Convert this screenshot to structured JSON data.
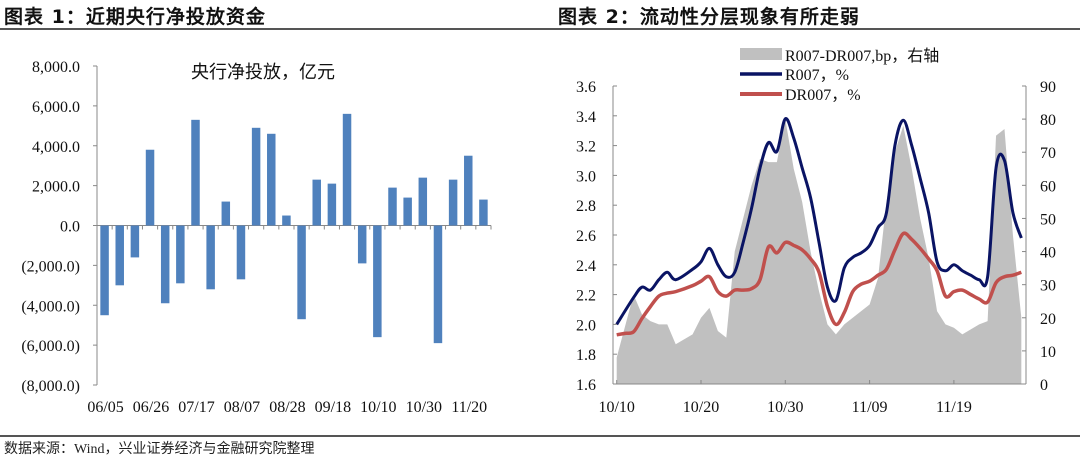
{
  "headers": {
    "left": "图表 1：近期央行净投放资金",
    "right": "图表 2：流动性分层现象有所走弱"
  },
  "footer": "数据来源：Wind，兴业证券经济与金融研究院整理",
  "chart_data": [
    {
      "type": "bar",
      "title": "央行净投放，亿元",
      "xlabel": "",
      "ylabel": "",
      "ylim": [
        -8000,
        8000
      ],
      "yticks": [
        "(8,000.0)",
        "(6,000.0)",
        "(4,000.0)",
        "(2,000.0)",
        "0.0",
        "2,000.0",
        "4,000.0",
        "6,000.0",
        "8,000.0"
      ],
      "ytick_values": [
        -8000,
        -6000,
        -4000,
        -2000,
        0,
        2000,
        4000,
        6000,
        8000
      ],
      "categories": [
        "06/05",
        "",
        "",
        "06/26",
        "",
        "",
        "07/17",
        "",
        "",
        "08/07",
        "",
        "",
        "08/28",
        "",
        "",
        "09/18",
        "",
        "",
        "10/10",
        "",
        "",
        "10/30",
        "",
        "",
        "11/20",
        ""
      ],
      "values": [
        -4500,
        -3000,
        -1600,
        3800,
        -3900,
        -2900,
        5300,
        -3200,
        1200,
        -2700,
        4900,
        4600,
        500,
        -4700,
        2300,
        2100,
        5600,
        -1900,
        -5600,
        1900,
        1400,
        2400,
        -5900,
        2300,
        3500,
        1300
      ],
      "color": "#4f81bd",
      "grid": false
    },
    {
      "type": "line",
      "title": "",
      "x_start": "10/10",
      "xticks": [
        "10/10",
        "10/20",
        "10/30",
        "11/09",
        "11/19"
      ],
      "xtick_days": [
        0,
        10,
        20,
        30,
        40
      ],
      "ylim_left": [
        1.6,
        3.6
      ],
      "yticks_left": [
        "1.6",
        "1.8",
        "2.0",
        "2.2",
        "2.4",
        "2.6",
        "2.8",
        "3.0",
        "3.2",
        "3.4",
        "3.6"
      ],
      "ylim_right": [
        0,
        90
      ],
      "yticks_right": [
        "0",
        "10",
        "20",
        "30",
        "40",
        "50",
        "60",
        "70",
        "80",
        "90"
      ],
      "legend_position": "top-center",
      "grid": false,
      "series": [
        {
          "name": "R007-DR007,bp，右轴",
          "kind": "area",
          "axis": "right",
          "color": "#c0c0c0",
          "days": [
            0,
            2,
            3,
            4,
            5,
            6,
            7,
            9,
            10,
            11,
            12,
            13,
            14,
            16,
            17,
            18,
            19,
            20,
            21,
            22,
            23,
            24,
            25,
            26,
            27,
            29,
            30,
            31,
            32,
            33,
            34,
            35,
            36,
            37,
            38,
            39,
            40,
            41,
            43,
            44,
            45,
            46,
            47,
            48
          ],
          "values": [
            8,
            27,
            21,
            19,
            18,
            18,
            12,
            15,
            20,
            23,
            16,
            14,
            40,
            60,
            68,
            67,
            67,
            80,
            65,
            55,
            40,
            28,
            18,
            15,
            18,
            22,
            24,
            32,
            55,
            70,
            78,
            65,
            50,
            38,
            22,
            18,
            17,
            15,
            18,
            19,
            75,
            77,
            45,
            20
          ]
        },
        {
          "name": "R007，%",
          "kind": "line",
          "axis": "left",
          "color": "#0a1464",
          "days": [
            0,
            2,
            3,
            4,
            5,
            6,
            7,
            9,
            10,
            11,
            12,
            13,
            14,
            15,
            16,
            17,
            18,
            19,
            20,
            21,
            22,
            23,
            24,
            25,
            26,
            27,
            28,
            29,
            30,
            31,
            32,
            33,
            34,
            35,
            36,
            37,
            38,
            39,
            40,
            41,
            42,
            43,
            44,
            45,
            46,
            47,
            48
          ],
          "values": [
            2.0,
            2.18,
            2.25,
            2.23,
            2.3,
            2.35,
            2.3,
            2.37,
            2.42,
            2.51,
            2.4,
            2.32,
            2.35,
            2.55,
            2.78,
            3.05,
            3.22,
            3.16,
            3.38,
            3.25,
            3.05,
            2.85,
            2.55,
            2.25,
            2.16,
            2.38,
            2.45,
            2.48,
            2.53,
            2.65,
            2.75,
            3.2,
            3.37,
            3.2,
            2.98,
            2.75,
            2.42,
            2.36,
            2.4,
            2.36,
            2.33,
            2.3,
            2.32,
            3.05,
            3.1,
            2.75,
            2.58
          ]
        },
        {
          "name": "DR007，%",
          "kind": "line",
          "axis": "left",
          "color": "#c0504d",
          "days": [
            0,
            1,
            2,
            3,
            4,
            5,
            6,
            7,
            9,
            10,
            11,
            12,
            13,
            14,
            15,
            16,
            17,
            18,
            19,
            20,
            21,
            22,
            23,
            24,
            25,
            26,
            27,
            28,
            29,
            30,
            31,
            32,
            33,
            34,
            35,
            36,
            37,
            38,
            39,
            40,
            41,
            42,
            43,
            44,
            45,
            46,
            47,
            48
          ],
          "values": [
            1.93,
            1.94,
            1.95,
            2.04,
            2.12,
            2.19,
            2.21,
            2.22,
            2.26,
            2.29,
            2.32,
            2.22,
            2.19,
            2.23,
            2.23,
            2.24,
            2.3,
            2.52,
            2.48,
            2.55,
            2.53,
            2.5,
            2.44,
            2.35,
            2.12,
            2.0,
            2.08,
            2.22,
            2.27,
            2.29,
            2.33,
            2.37,
            2.5,
            2.61,
            2.57,
            2.51,
            2.44,
            2.36,
            2.19,
            2.22,
            2.23,
            2.2,
            2.17,
            2.15,
            2.28,
            2.32,
            2.33,
            2.35
          ]
        }
      ]
    }
  ]
}
